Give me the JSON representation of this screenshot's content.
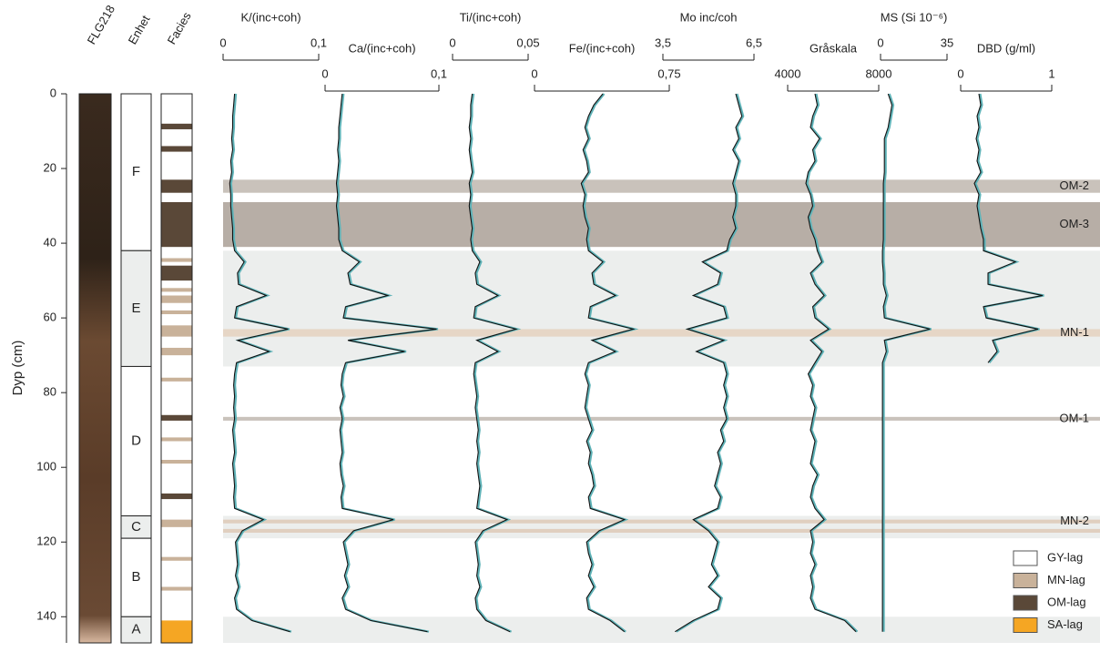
{
  "chart_data": {
    "type": "depth-profile",
    "ylabel": "Dyp (cm)",
    "ylim": [
      0,
      147
    ],
    "yticks": [
      0,
      20,
      40,
      60,
      80,
      100,
      120,
      140
    ],
    "core_label": "FLG218",
    "units_title": "Enhet",
    "facies_title": "Facies",
    "units": [
      {
        "label": "F",
        "top": 0,
        "bottom": 42,
        "color": "#ffffff"
      },
      {
        "label": "E",
        "top": 42,
        "bottom": 73,
        "color": "#eceeed"
      },
      {
        "label": "D",
        "top": 73,
        "bottom": 113,
        "color": "#ffffff"
      },
      {
        "label": "C",
        "top": 113,
        "bottom": 119,
        "color": "#eceeed"
      },
      {
        "label": "B",
        "top": 119,
        "bottom": 140,
        "color": "#ffffff"
      },
      {
        "label": "A",
        "top": 140,
        "bottom": 147,
        "color": "#eceeed"
      }
    ],
    "facies": [
      {
        "top": 8,
        "bottom": 9.5,
        "color": "#5a4838"
      },
      {
        "top": 14,
        "bottom": 15.5,
        "color": "#5a4838"
      },
      {
        "top": 23,
        "bottom": 26.5,
        "color": "#5a4838"
      },
      {
        "top": 29,
        "bottom": 41,
        "color": "#5a4838"
      },
      {
        "top": 44,
        "bottom": 45,
        "color": "#c9b29a"
      },
      {
        "top": 46,
        "bottom": 50,
        "color": "#5a4838"
      },
      {
        "top": 52,
        "bottom": 53,
        "color": "#c9b29a"
      },
      {
        "top": 54,
        "bottom": 56,
        "color": "#c9b29a"
      },
      {
        "top": 58,
        "bottom": 59,
        "color": "#c9b29a"
      },
      {
        "top": 62,
        "bottom": 65,
        "color": "#c9b29a"
      },
      {
        "top": 68,
        "bottom": 70,
        "color": "#c9b29a"
      },
      {
        "top": 76,
        "bottom": 77,
        "color": "#c9b29a"
      },
      {
        "top": 86,
        "bottom": 87.5,
        "color": "#5a4838"
      },
      {
        "top": 92,
        "bottom": 93,
        "color": "#c9b29a"
      },
      {
        "top": 98,
        "bottom": 99,
        "color": "#c9b29a"
      },
      {
        "top": 107,
        "bottom": 108.5,
        "color": "#5a4838"
      },
      {
        "top": 114,
        "bottom": 116,
        "color": "#c9b29a"
      },
      {
        "top": 124,
        "bottom": 125,
        "color": "#c9b29a"
      },
      {
        "top": 132,
        "bottom": 133,
        "color": "#c9b29a"
      },
      {
        "top": 141,
        "bottom": 147,
        "color": "#f5a623"
      }
    ],
    "bands": [
      {
        "top": 42,
        "bottom": 73,
        "color": "#eceeed"
      },
      {
        "top": 113,
        "bottom": 119,
        "color": "#eceeed"
      },
      {
        "top": 140,
        "bottom": 147,
        "color": "#eceeed"
      },
      {
        "label": "OM-2",
        "top": 23,
        "bottom": 26.5,
        "color": "#c9c2bb"
      },
      {
        "label": "OM-3",
        "top": 29,
        "bottom": 41,
        "color": "#b7aea6"
      },
      {
        "label": "MN-1",
        "top": 63,
        "bottom": 65,
        "color": "#e6d6c6"
      },
      {
        "label": "OM-1",
        "top": 86.5,
        "bottom": 87.5,
        "color": "#c9c2bb"
      },
      {
        "label": "MN-2",
        "top": 114,
        "bottom": 115,
        "color": "#e0cfbf"
      },
      {
        "top": 116.5,
        "bottom": 117.5,
        "color": "#e0cfbf"
      }
    ],
    "legend": [
      {
        "label": "GY-lag",
        "color": "#ffffff"
      },
      {
        "label": "MN-lag",
        "color": "#c9b29a"
      },
      {
        "label": "OM-lag",
        "color": "#5a4838"
      },
      {
        "label": "SA-lag",
        "color": "#f5a623"
      }
    ],
    "y": [
      0,
      3,
      6,
      9,
      12,
      15,
      18,
      21,
      24,
      27,
      30,
      33,
      36,
      39,
      42,
      45,
      48,
      51,
      54,
      57,
      60,
      63,
      66,
      69,
      72,
      75,
      78,
      81,
      84,
      87,
      90,
      93,
      96,
      99,
      102,
      105,
      108,
      111,
      114,
      117,
      120,
      123,
      126,
      129,
      132,
      135,
      138,
      141,
      144
    ],
    "series": [
      {
        "name": "K/(inc+coh)",
        "color": "#111111",
        "xlim": [
          0,
          0.1
        ],
        "xticks": [
          0,
          {
            "value": 0.1,
            "label": "0,1"
          }
        ],
        "values": [
          0.012,
          0.011,
          0.01,
          0.01,
          0.009,
          0.01,
          0.008,
          0.009,
          0.007,
          0.008,
          0.008,
          0.009,
          0.01,
          0.01,
          0.012,
          0.022,
          0.015,
          0.016,
          0.045,
          0.014,
          0.012,
          0.068,
          0.015,
          0.048,
          0.014,
          0.012,
          0.011,
          0.012,
          0.011,
          0.012,
          0.01,
          0.011,
          0.012,
          0.01,
          0.011,
          0.012,
          0.011,
          0.012,
          0.042,
          0.02,
          0.013,
          0.014,
          0.015,
          0.013,
          0.016,
          0.012,
          0.014,
          0.03,
          0.07
        ]
      },
      {
        "name": "Ca/(inc+coh)",
        "color": "#111111",
        "xlim": [
          0,
          0.1
        ],
        "xticks": [
          0,
          {
            "value": 0.1,
            "label": "0,1"
          }
        ],
        "values": [
          0.015,
          0.014,
          0.013,
          0.012,
          0.012,
          0.011,
          0.012,
          0.011,
          0.01,
          0.011,
          0.01,
          0.011,
          0.012,
          0.012,
          0.015,
          0.03,
          0.02,
          0.022,
          0.055,
          0.018,
          0.016,
          0.098,
          0.02,
          0.07,
          0.018,
          0.015,
          0.014,
          0.016,
          0.013,
          0.015,
          0.013,
          0.014,
          0.015,
          0.013,
          0.014,
          0.016,
          0.014,
          0.015,
          0.06,
          0.025,
          0.016,
          0.018,
          0.02,
          0.017,
          0.02,
          0.015,
          0.018,
          0.04,
          0.09
        ]
      },
      {
        "name": "Ti/(inc+coh)",
        "color": "#111111",
        "xlim": [
          0,
          0.05
        ],
        "xticks": [
          0,
          {
            "value": 0.05,
            "label": "0,05"
          }
        ],
        "values": [
          0.013,
          0.012,
          0.012,
          0.011,
          0.012,
          0.011,
          0.012,
          0.013,
          0.011,
          0.012,
          0.011,
          0.012,
          0.013,
          0.012,
          0.013,
          0.018,
          0.015,
          0.016,
          0.03,
          0.015,
          0.014,
          0.042,
          0.016,
          0.03,
          0.015,
          0.014,
          0.015,
          0.016,
          0.015,
          0.016,
          0.017,
          0.016,
          0.017,
          0.016,
          0.017,
          0.018,
          0.017,
          0.016,
          0.036,
          0.02,
          0.015,
          0.016,
          0.017,
          0.016,
          0.018,
          0.015,
          0.016,
          0.022,
          0.038
        ]
      },
      {
        "name": "Fe/(inc+coh)",
        "color": "#111111",
        "xlim": [
          0,
          0.75
        ],
        "xticks": [
          0,
          {
            "value": 0.75,
            "label": "0,75"
          }
        ],
        "values": [
          0.38,
          0.33,
          0.3,
          0.28,
          0.3,
          0.27,
          0.29,
          0.3,
          0.26,
          0.28,
          0.27,
          0.28,
          0.3,
          0.29,
          0.3,
          0.38,
          0.32,
          0.33,
          0.45,
          0.31,
          0.3,
          0.55,
          0.32,
          0.45,
          0.3,
          0.28,
          0.3,
          0.29,
          0.28,
          0.3,
          0.32,
          0.29,
          0.31,
          0.3,
          0.32,
          0.33,
          0.3,
          0.31,
          0.5,
          0.36,
          0.29,
          0.3,
          0.32,
          0.3,
          0.33,
          0.29,
          0.3,
          0.42,
          0.5
        ]
      },
      {
        "name": "Mo inc/coh",
        "color": "#111111",
        "xlim": [
          3.5,
          6.5
        ],
        "xticks": [
          {
            "value": 3.5,
            "label": "3,5"
          },
          {
            "value": 6.5,
            "label": "6,5"
          }
        ],
        "values": [
          5.9,
          6.0,
          6.1,
          5.9,
          6.0,
          5.8,
          6.0,
          5.9,
          5.8,
          5.9,
          5.9,
          5.8,
          5.9,
          5.7,
          5.6,
          4.8,
          5.4,
          5.3,
          4.5,
          5.5,
          5.6,
          4.3,
          5.5,
          4.6,
          5.5,
          5.6,
          5.5,
          5.6,
          5.5,
          5.6,
          5.4,
          5.5,
          5.3,
          5.4,
          5.3,
          5.2,
          5.4,
          5.3,
          4.5,
          5.0,
          5.3,
          5.2,
          5.1,
          5.3,
          5.0,
          5.4,
          5.3,
          4.5,
          3.9
        ]
      },
      {
        "name": "Gråskala",
        "color": "#111111",
        "xlim": [
          4000,
          8000
        ],
        "xticks": [
          4000,
          8000
        ],
        "values": [
          5200,
          5300,
          5100,
          5000,
          5400,
          5100,
          5200,
          4900,
          4800,
          5000,
          5100,
          4900,
          5000,
          5200,
          5300,
          5500,
          5000,
          5200,
          5600,
          5100,
          5200,
          5800,
          5000,
          5500,
          5200,
          4900,
          5100,
          5000,
          5200,
          5100,
          5000,
          5200,
          5100,
          5000,
          5300,
          5100,
          5000,
          5200,
          5600,
          5000,
          5100,
          5000,
          5200,
          5000,
          5100,
          5000,
          5200,
          6500,
          7000
        ]
      },
      {
        "name": "MS (Si 10⁻⁶)",
        "color": "#111111",
        "xlim": [
          0,
          35
        ],
        "xticks": [
          0,
          35
        ],
        "values": [
          4,
          6,
          5,
          4,
          2,
          2,
          2,
          2,
          1.5,
          1.5,
          1.5,
          1.5,
          1.5,
          1.5,
          1,
          1,
          1.5,
          1.5,
          3,
          1.5,
          2,
          26,
          2,
          3,
          1,
          1,
          1,
          1,
          1,
          1,
          1,
          1,
          1,
          1,
          1,
          1,
          1,
          1,
          1,
          1,
          1,
          1,
          1,
          1,
          1,
          1,
          1,
          1,
          1
        ]
      },
      {
        "name": "DBD (g/ml)",
        "color": "#111111",
        "xlim": [
          0,
          1
        ],
        "xticks": [
          0,
          1
        ],
        "values": [
          0.2,
          0.22,
          0.18,
          0.2,
          0.17,
          0.2,
          0.18,
          0.22,
          0.15,
          0.2,
          0.18,
          0.2,
          0.22,
          0.25,
          0.25,
          0.6,
          0.3,
          0.3,
          0.9,
          0.25,
          0.28,
          0.85,
          0.35,
          0.4,
          0.3,
          null,
          null,
          null,
          null,
          null,
          null,
          null,
          null,
          null,
          null,
          null,
          null,
          null,
          null,
          null,
          null,
          null,
          null,
          null,
          null,
          null,
          null,
          null,
          null
        ]
      }
    ]
  }
}
